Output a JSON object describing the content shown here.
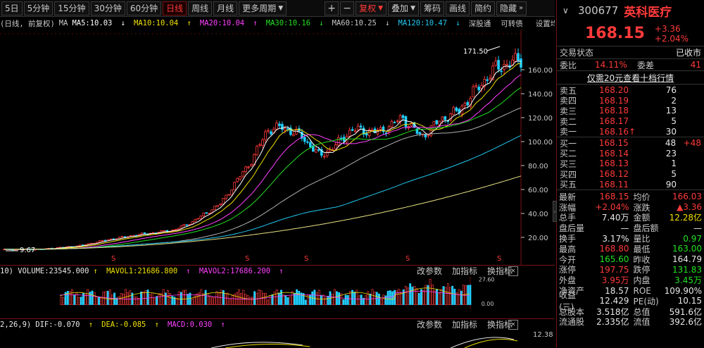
{
  "toolbar": {
    "periods": [
      "5日",
      "5分钟",
      "15分钟",
      "30分钟",
      "60分钟",
      "日线",
      "周线",
      "月线",
      "更多周期"
    ],
    "active_period": "日线",
    "fuquan": "复权",
    "overlay": "叠加",
    "tools": [
      "筹码",
      "画线",
      "简约"
    ],
    "hide": "隐藏"
  },
  "ma_legend": {
    "prefix": "(日线, 前复权)",
    "ma": "MA",
    "ma5": "MA5:10.03",
    "ma10": "MA10:10.04",
    "ma20": "MA20:10.04",
    "ma30": "MA30:10.16",
    "ma60": "MA60:10.25",
    "ma120": "MA120:10.47",
    "link1": "深股通",
    "link2": "可转债",
    "link3": "设置均线"
  },
  "main_chart": {
    "y_ticks": [
      "160.00",
      "140.00",
      "120.00",
      "100.00",
      "80.00",
      "60.00",
      "40.00",
      "20.00"
    ],
    "high_label": "171.50",
    "low_label": "9.67"
  },
  "volume": {
    "header": "10) VOLUME:23545.000",
    "mavol1": "MAVOL1:21686.800",
    "mavol2": "MAVOL2:17686.200",
    "y_ticks": [
      "27.60",
      "0.00"
    ],
    "tools": [
      "改参数",
      "加指标",
      "换指标"
    ]
  },
  "macd": {
    "header": "2,26,9)",
    "dif": "DIF:-0.070",
    "dea": "DEA:-0.085",
    "macd": "MACD:0.030",
    "y_tick": "12.38",
    "tools": [
      "改参数",
      "加指标",
      "换指标"
    ]
  },
  "panel": {
    "code": "300677",
    "name": "英科医疗",
    "price": "168.15",
    "change": "+3.36",
    "change_pct": "+2.04%",
    "status_label": "交易状态",
    "status_value": "已收市",
    "weibi_label": "委比",
    "weibi_value": "14.11%",
    "weicha_label": "委差",
    "weicha_value": "41",
    "promo": "仅需20元查看十档行情",
    "asks": [
      {
        "label": "卖五",
        "price": "168.20",
        "vol": "76",
        "delta": ""
      },
      {
        "label": "卖四",
        "price": "168.19",
        "vol": "2",
        "delta": ""
      },
      {
        "label": "卖三",
        "price": "168.18",
        "vol": "13",
        "delta": ""
      },
      {
        "label": "卖二",
        "price": "168.17",
        "vol": "5",
        "delta": ""
      },
      {
        "label": "卖一",
        "price": "168.16↑",
        "vol": "30",
        "delta": ""
      }
    ],
    "bids": [
      {
        "label": "买一",
        "price": "168.15",
        "vol": "48",
        "delta": "+48"
      },
      {
        "label": "买二",
        "price": "168.14",
        "vol": "23",
        "delta": ""
      },
      {
        "label": "买三",
        "price": "168.13",
        "vol": "1",
        "delta": ""
      },
      {
        "label": "买四",
        "price": "168.12",
        "vol": "5",
        "delta": ""
      },
      {
        "label": "买五",
        "price": "168.11",
        "vol": "90",
        "delta": ""
      }
    ],
    "stats": [
      {
        "l": "最新",
        "v": "168.15",
        "vc": "red",
        "l2": "均价",
        "v2": "166.03",
        "v2c": "red"
      },
      {
        "l": "涨幅",
        "v": "+2.04%",
        "vc": "red",
        "l2": "涨跌",
        "v2": "▲3.36",
        "v2c": "red"
      },
      {
        "l": "总手",
        "v": "7.40万",
        "vc": "white",
        "l2": "金额",
        "v2": "12.28亿",
        "v2c": "yellow"
      },
      {
        "l": "盘后量",
        "v": "—",
        "vc": "white",
        "l2": "盘后额",
        "v2": "—",
        "v2c": "white"
      },
      {
        "l": "换手",
        "v": "3.17%",
        "vc": "white",
        "l2": "量比",
        "v2": "0.97",
        "v2c": "green"
      },
      {
        "l": "最高",
        "v": "168.80",
        "vc": "red",
        "l2": "最低",
        "v2": "163.00",
        "v2c": "green"
      },
      {
        "l": "今开",
        "v": "165.60",
        "vc": "green",
        "l2": "昨收",
        "v2": "164.79",
        "v2c": "white"
      },
      {
        "l": "涨停",
        "v": "197.75",
        "vc": "red",
        "l2": "跌停",
        "v2": "131.83",
        "v2c": "green"
      },
      {
        "l": "外盘",
        "v": "3.95万",
        "vc": "red",
        "l2": "内盘",
        "v2": "3.45万",
        "v2c": "green"
      },
      {
        "l": "净资产",
        "v": "18.57",
        "vc": "white",
        "l2": "ROE",
        "v2": "109.90%",
        "v2c": "white"
      },
      {
        "l": "收益(三)",
        "v": "12.429",
        "vc": "white",
        "l2": "PE(动)",
        "v2": "10.15",
        "v2c": "white"
      },
      {
        "l": "总股本",
        "v": "3.518亿",
        "vc": "white",
        "l2": "总值",
        "v2": "591.6亿",
        "v2c": "white"
      },
      {
        "l": "流通股",
        "v": "2.335亿",
        "vc": "white",
        "l2": "流值",
        "v2": "392.6亿",
        "v2c": "white"
      }
    ]
  },
  "colors": {
    "up": "#ff3a3a",
    "down": "#22e022",
    "ma5": "#ffffff",
    "ma10": "#f0e000",
    "ma20": "#ff40ff",
    "ma30": "#22e022",
    "ma60": "#b0b0b0",
    "ma120": "#20c8f0",
    "ma250": "#e8e080"
  }
}
